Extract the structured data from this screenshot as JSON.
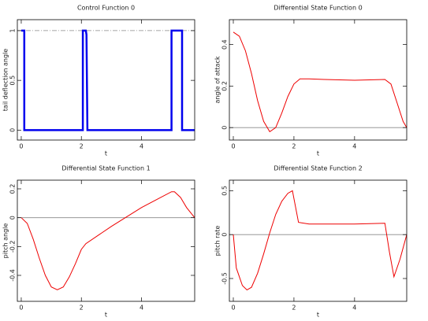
{
  "chart_data": [
    {
      "type": "line",
      "title": "Control Function 0",
      "xlabel": "t",
      "ylabel": "tail deflection angle",
      "xlim": [
        -0.13,
        5.77
      ],
      "ylim": [
        -0.1,
        1.11
      ],
      "xticks": [
        0,
        2,
        4
      ],
      "yticks": [
        0,
        0.5,
        1
      ],
      "bound_line": 1,
      "color": "#0000ee",
      "line_width": 2.5,
      "x": [
        0,
        0.1,
        0.1,
        2.05,
        2.05,
        2.15,
        2.17,
        2.2,
        5.0,
        5.0,
        5.35,
        5.35,
        5.77
      ],
      "values": [
        1,
        1,
        0,
        0,
        1,
        1,
        0.96,
        0,
        0,
        1,
        1,
        0,
        0
      ]
    },
    {
      "type": "line",
      "title": "Differential State Function 0",
      "xlabel": "t",
      "ylabel": "angle of attack",
      "xlim": [
        -0.13,
        5.72
      ],
      "ylim": [
        -0.06,
        0.52
      ],
      "xticks": [
        0,
        2,
        4
      ],
      "yticks": [
        0,
        0.2,
        0.4
      ],
      "zero_line": true,
      "color": "#ee0000",
      "line_width": 1,
      "x": [
        0,
        0.2,
        0.4,
        0.6,
        0.8,
        1.0,
        1.2,
        1.4,
        1.6,
        1.8,
        2.0,
        2.2,
        2.5,
        3,
        3.5,
        4,
        4.5,
        5.0,
        5.2,
        5.4,
        5.6,
        5.72
      ],
      "values": [
        0.46,
        0.44,
        0.37,
        0.26,
        0.13,
        0.03,
        -0.02,
        0,
        0.07,
        0.15,
        0.21,
        0.235,
        0.235,
        0.232,
        0.23,
        0.228,
        0.23,
        0.232,
        0.21,
        0.12,
        0.03,
        0
      ]
    },
    {
      "type": "line",
      "title": "Differential State Function 1",
      "xlabel": "t",
      "ylabel": "pitch angle",
      "xlim": [
        -0.13,
        5.77
      ],
      "ylim": [
        -0.58,
        0.26
      ],
      "xticks": [
        0,
        2,
        4
      ],
      "yticks": [
        -0.4,
        -0.2,
        0,
        0.2
      ],
      "zero_line": true,
      "color": "#ee0000",
      "line_width": 1,
      "x": [
        0,
        0.2,
        0.4,
        0.6,
        0.8,
        1.0,
        1.2,
        1.4,
        1.6,
        1.8,
        2.0,
        2.15,
        3,
        4,
        5.0,
        5.1,
        5.3,
        5.5,
        5.77
      ],
      "values": [
        0,
        -0.04,
        -0.15,
        -0.28,
        -0.4,
        -0.48,
        -0.5,
        -0.48,
        -0.41,
        -0.32,
        -0.22,
        -0.18,
        -0.06,
        0.07,
        0.18,
        0.18,
        0.14,
        0.07,
        0
      ]
    },
    {
      "type": "line",
      "title": "Differential State Function 2",
      "xlabel": "t",
      "ylabel": "pitch rate",
      "xlim": [
        -0.13,
        5.72
      ],
      "ylim": [
        -0.76,
        0.62
      ],
      "xticks": [
        0,
        2,
        4
      ],
      "yticks": [
        -0.5,
        0,
        0.5
      ],
      "zero_line": true,
      "color": "#ee0000",
      "line_width": 1,
      "x": [
        0,
        0.1,
        0.3,
        0.45,
        0.6,
        0.8,
        1.0,
        1.2,
        1.4,
        1.6,
        1.8,
        1.95,
        2.15,
        2.5,
        3,
        4,
        5.0,
        5.15,
        5.3,
        5.5,
        5.72
      ],
      "values": [
        0,
        -0.38,
        -0.58,
        -0.63,
        -0.6,
        -0.44,
        -0.22,
        0.02,
        0.23,
        0.38,
        0.47,
        0.5,
        0.14,
        0.12,
        0.12,
        0.12,
        0.13,
        -0.2,
        -0.48,
        -0.28,
        0
      ]
    }
  ]
}
